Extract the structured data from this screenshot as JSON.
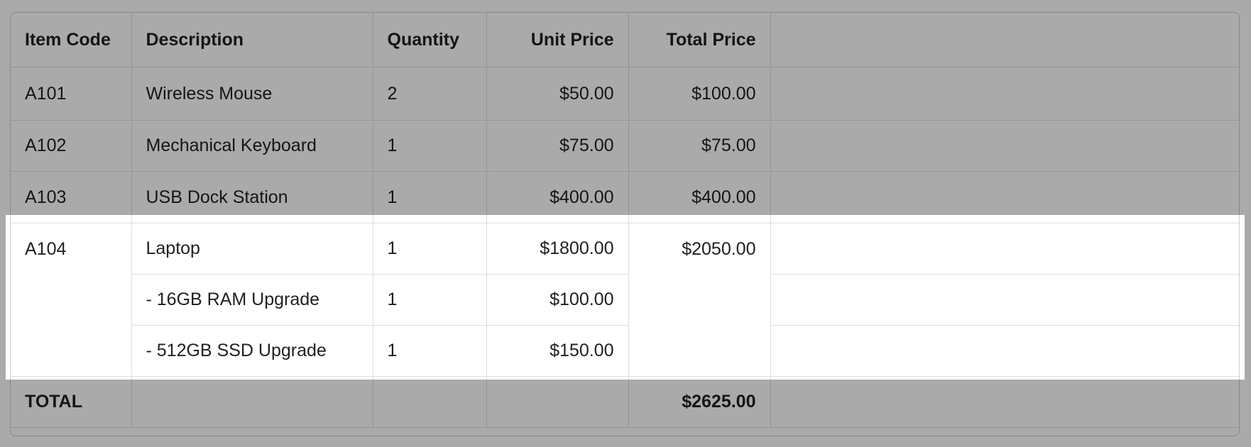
{
  "table": {
    "headers": [
      "Item Code",
      "Description",
      "Quantity",
      "Unit Price",
      "Total Price",
      ""
    ],
    "rows": [
      {
        "code": "A101",
        "description": "Wireless Mouse",
        "quantity": "2",
        "unit_price": "$50.00",
        "total_price": "$100.00"
      },
      {
        "code": "A102",
        "description": "Mechanical Keyboard",
        "quantity": "1",
        "unit_price": "$75.00",
        "total_price": "$75.00"
      },
      {
        "code": "A103",
        "description": "USB Dock Station",
        "quantity": "1",
        "unit_price": "$400.00",
        "total_price": "$400.00"
      }
    ],
    "group": {
      "code": "A104",
      "total_price": "$2050.00",
      "lines": [
        {
          "description": "Laptop",
          "quantity": "1",
          "unit_price": "$1800.00"
        },
        {
          "description": "- 16GB RAM Upgrade",
          "quantity": "1",
          "unit_price": "$100.00"
        },
        {
          "description": "- 512GB SSD Upgrade",
          "quantity": "1",
          "unit_price": "$150.00"
        }
      ]
    },
    "total": {
      "label": "TOTAL",
      "value": "$2625.00"
    }
  },
  "colors": {
    "overlay": "#aaaaaa",
    "highlight": "#ffffff"
  }
}
